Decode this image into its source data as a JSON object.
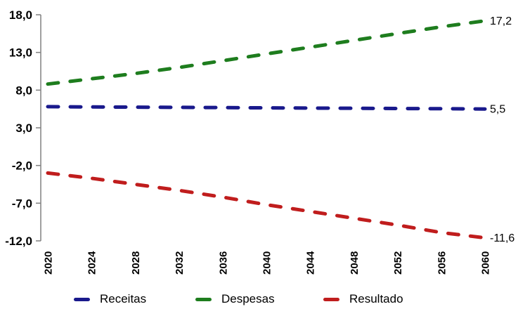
{
  "chart_data": {
    "type": "line",
    "title": "",
    "xlabel": "",
    "ylabel": "",
    "line_style": "dashed",
    "grid": false,
    "legend_position": "bottom",
    "background_color": "#ffffff",
    "axis_color": "#808080",
    "text_color": "#000000",
    "decimal_separator": ",",
    "x": [
      2020,
      2024,
      2028,
      2032,
      2036,
      2040,
      2044,
      2048,
      2052,
      2056,
      2060
    ],
    "x_tick_labels": [
      "2020",
      "2024",
      "2028",
      "2032",
      "2036",
      "2040",
      "2044",
      "2048",
      "2052",
      "2056",
      "2060"
    ],
    "ylim": [
      -12,
      18
    ],
    "y_ticks": [
      18,
      13,
      8,
      3,
      -2,
      -7,
      -12
    ],
    "y_tick_labels": [
      "18,0",
      "13,0",
      "8,0",
      "3,0",
      "-2,0",
      "-7,0",
      "-12,0"
    ],
    "series": [
      {
        "name": "Receitas",
        "color": "#19198c",
        "end_label": "5,5",
        "values": [
          5.8,
          5.77,
          5.74,
          5.71,
          5.68,
          5.65,
          5.62,
          5.59,
          5.56,
          5.53,
          5.5
        ]
      },
      {
        "name": "Despesas",
        "color": "#1e7d1e",
        "end_label": "17,2",
        "values": [
          8.8,
          9.5,
          10.2,
          11.0,
          11.9,
          12.8,
          13.7,
          14.6,
          15.5,
          16.4,
          17.2
        ]
      },
      {
        "name": "Resultado",
        "color": "#c01d1d",
        "end_label": "-11,6",
        "values": [
          -3.0,
          -3.7,
          -4.5,
          -5.3,
          -6.2,
          -7.2,
          -8.1,
          -9.0,
          -9.9,
          -10.9,
          -11.6
        ]
      }
    ]
  }
}
